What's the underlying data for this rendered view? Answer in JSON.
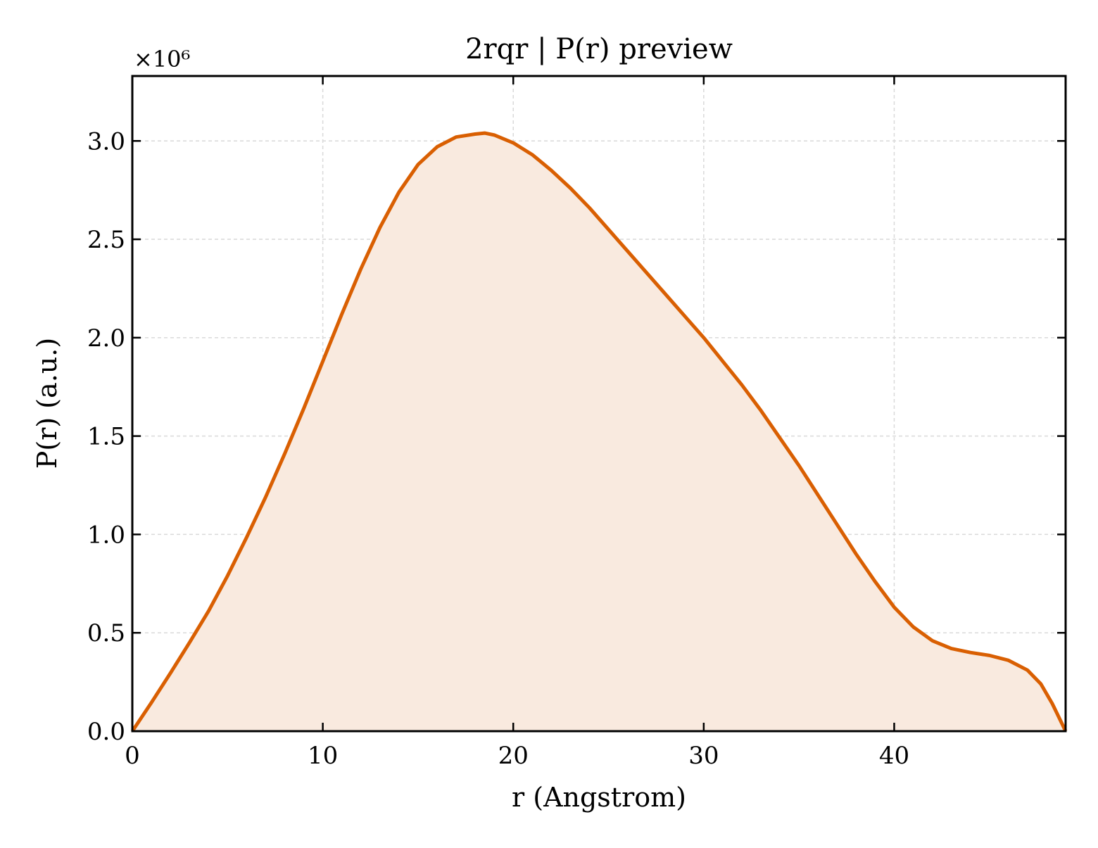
{
  "chart_data": {
    "type": "area",
    "title": "2rqr | P(r) preview",
    "xlabel": "r (Angstrom)",
    "ylabel": "P(r) (a.u.)",
    "y_offset_label": "×10⁶",
    "xlim": [
      0,
      49
    ],
    "ylim": [
      0,
      3.33
    ],
    "x_ticks": [
      0,
      10,
      20,
      30,
      40
    ],
    "x_tick_labels": [
      "0",
      "10",
      "20",
      "30",
      "40"
    ],
    "y_ticks": [
      0,
      0.5,
      1.0,
      1.5,
      2.0,
      2.5,
      3.0
    ],
    "y_tick_labels": [
      "0.0",
      "0.5",
      "1.0",
      "1.5",
      "2.0",
      "2.5",
      "3.0"
    ],
    "grid": true,
    "line_color": "#d95f02",
    "fill_color": "#f9eadf",
    "series": [
      {
        "x": [
          0,
          1,
          2,
          3,
          4,
          5,
          6,
          7,
          8,
          9,
          10,
          11,
          12,
          13,
          14,
          15,
          16,
          17,
          18,
          18.5,
          19,
          20,
          21,
          22,
          23,
          24,
          25,
          26,
          27,
          28,
          29,
          30,
          31,
          32,
          33,
          34,
          35,
          36,
          37,
          38,
          39,
          40,
          41,
          42,
          43,
          44,
          45,
          46,
          47,
          47.7,
          48.3,
          49
        ],
        "y": [
          0,
          0.145,
          0.295,
          0.45,
          0.61,
          0.79,
          0.985,
          1.19,
          1.41,
          1.64,
          1.88,
          2.12,
          2.35,
          2.56,
          2.74,
          2.88,
          2.97,
          3.02,
          3.035,
          3.04,
          3.03,
          2.99,
          2.93,
          2.85,
          2.76,
          2.66,
          2.55,
          2.44,
          2.33,
          2.22,
          2.11,
          2.0,
          1.88,
          1.76,
          1.63,
          1.49,
          1.35,
          1.2,
          1.05,
          0.9,
          0.76,
          0.63,
          0.53,
          0.46,
          0.42,
          0.4,
          0.385,
          0.36,
          0.31,
          0.24,
          0.14,
          0.0
        ]
      }
    ]
  }
}
